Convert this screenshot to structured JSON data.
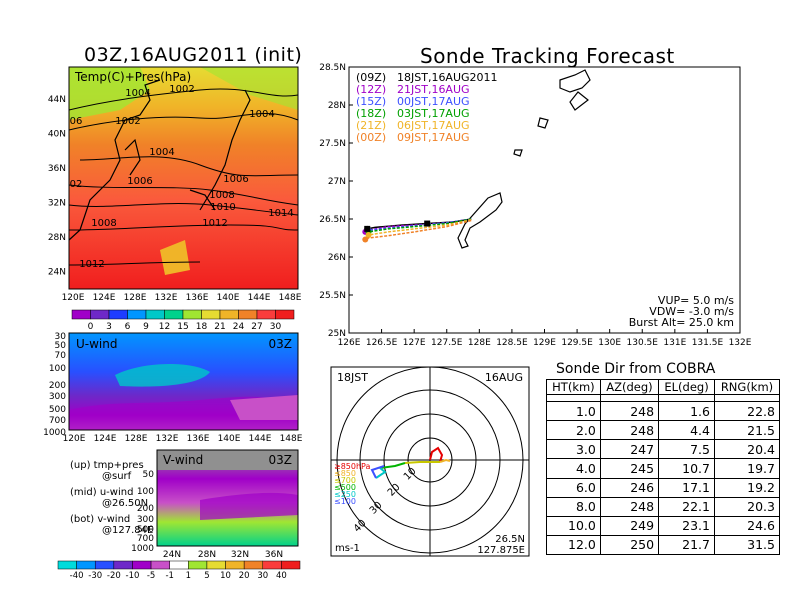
{
  "left_title": "03Z,16AUG2011 (init)",
  "map_panel": {
    "label": "Temp(C)+Pres(hPa)",
    "x_ticks": [
      "120E",
      "124E",
      "128E",
      "132E",
      "136E",
      "140E",
      "144E",
      "148E"
    ],
    "y_ticks": [
      "44N",
      "40N",
      "36N",
      "32N",
      "28N",
      "24N"
    ],
    "isobar_labels": [
      "1004",
      "1002",
      "1002",
      "1004",
      "1004",
      "1006",
      "1006",
      "1008",
      "1010",
      "1008",
      "1012",
      "1014",
      "1012",
      "06",
      "02"
    ],
    "colorbar_labels": [
      "0",
      "3",
      "6",
      "9",
      "12",
      "15",
      "18",
      "21",
      "24",
      "27",
      "30"
    ],
    "colorbar_colors": [
      "#a000c8",
      "#6e28c8",
      "#1e3cff",
      "#0096ff",
      "#00c8c8",
      "#00d28c",
      "#a0e632",
      "#e6dc32",
      "#f0b428",
      "#f08228",
      "#fa3c3c",
      "#f01e1e"
    ]
  },
  "u_panel": {
    "label": "U-wind",
    "time": "03Z",
    "y_ticks": [
      "30",
      "50",
      "70",
      "100",
      "200",
      "300",
      "500",
      "700",
      "1000"
    ],
    "x_ticks": [
      "120E",
      "124E",
      "128E",
      "132E",
      "136E",
      "140E",
      "144E",
      "148E"
    ]
  },
  "v_panel": {
    "label": "V-wind",
    "time": "03Z",
    "y_ticks": [
      "50",
      "100",
      "200",
      "300",
      "500",
      "700",
      "1000"
    ],
    "x_ticks": [
      "24N",
      "28N",
      "32N",
      "36N"
    ]
  },
  "notes": [
    {
      "a": "(up) tmp+pres",
      "b": "@surf"
    },
    {
      "a": "(mid) u-wind",
      "b": "@26.50N"
    },
    {
      "a": "(bot) v-wind",
      "b": "@127.84E"
    }
  ],
  "wind_colorbar": {
    "labels": [
      "-40",
      "-30",
      "-20",
      "-10",
      "-5",
      "-1",
      "1",
      "5",
      "10",
      "20",
      "30",
      "40"
    ],
    "colors": [
      "#00dcdc",
      "#0096ff",
      "#2850ff",
      "#6e28c8",
      "#a000c8",
      "#c850c8",
      "#ffffff",
      "#a0e632",
      "#e6dc32",
      "#f0b428",
      "#f08228",
      "#fa3c3c",
      "#f01e1e"
    ]
  },
  "track_title": "Sonde Tracking Forecast",
  "track_legend": [
    {
      "code": "(09Z)",
      "time": "18JST,16AUG2011",
      "color": "#000000"
    },
    {
      "code": "(12Z)",
      "time": "21JST,16AUG",
      "color": "#a000c8"
    },
    {
      "code": "(15Z)",
      "time": "00JST,17AUG",
      "color": "#3c50ff"
    },
    {
      "code": "(18Z)",
      "time": "03JST,17AUG",
      "color": "#00a000"
    },
    {
      "code": "(21Z)",
      "time": "06JST,17AUG",
      "color": "#f0b428"
    },
    {
      "code": "(00Z)",
      "time": "09JST,17AUG",
      "color": "#f08228"
    }
  ],
  "track_params": [
    "VUP= 5.0 m/s",
    "VDW= -3.0 m/s",
    "Burst Alt= 25.0 km"
  ],
  "chart_data": {
    "type": "line",
    "title": "Sonde Tracking Forecast",
    "xlim": [
      126,
      132
    ],
    "ylim": [
      25,
      28.5
    ],
    "x_ticks": [
      "126E",
      "126.5E",
      "127E",
      "127.5E",
      "128E",
      "128.5E",
      "129E",
      "129.5E",
      "130E",
      "130.5E",
      "131E",
      "131.5E",
      "132E"
    ],
    "y_ticks": [
      "28.5N",
      "28N",
      "27.5N",
      "27N",
      "26.5N",
      "26N",
      "25.5N",
      "25N"
    ],
    "release": {
      "lon": 127.875,
      "lat": 26.5
    },
    "series": [
      {
        "name": "(09Z) 18JST,16AUG2011",
        "color": "#000000",
        "lon": [
          127.875,
          127.6,
          127.2,
          126.8,
          126.4,
          126.28
        ],
        "lat": [
          26.5,
          26.46,
          26.44,
          26.42,
          26.39,
          26.37
        ]
      },
      {
        "name": "(12Z) 21JST,16AUG",
        "color": "#a000c8",
        "lon": [
          127.875,
          127.5,
          127.0,
          126.6,
          126.35,
          126.25
        ],
        "lat": [
          26.5,
          26.45,
          26.42,
          26.4,
          26.36,
          26.33
        ]
      },
      {
        "name": "(15Z) 00JST,17AUG",
        "color": "#3c50ff",
        "lon": [
          127.875,
          127.5,
          127.0,
          126.6,
          126.3
        ],
        "lat": [
          26.5,
          26.45,
          26.41,
          26.38,
          26.35
        ]
      },
      {
        "name": "(18Z) 03JST,17AUG",
        "color": "#00a000",
        "lon": [
          127.875,
          127.5,
          127.0,
          126.6,
          126.3
        ],
        "lat": [
          26.5,
          26.44,
          26.4,
          26.37,
          26.33
        ]
      },
      {
        "name": "(21Z) 06JST,17AUG",
        "color": "#f0b428",
        "lon": [
          127.875,
          127.5,
          127.0,
          126.6,
          126.3
        ],
        "lat": [
          26.49,
          26.42,
          26.37,
          26.33,
          26.29
        ]
      },
      {
        "name": "(00Z) 09JST,17AUG",
        "color": "#f08228",
        "lon": [
          127.875,
          127.5,
          127.0,
          126.6,
          126.3,
          126.25
        ],
        "lat": [
          26.48,
          26.4,
          26.33,
          26.28,
          26.25,
          26.23
        ]
      }
    ]
  },
  "polar": {
    "time": "18JST",
    "date": "16AUG",
    "units": "ms-1",
    "lat": "26.5N",
    "lon": "127.875E",
    "ring_labels": [
      "10",
      "20",
      "30",
      "40"
    ],
    "levels": [
      {
        "label": "≥850hPa",
        "color": "#e60000"
      },
      {
        "label": "≤850",
        "color": "#f0b428"
      },
      {
        "label": "≤700",
        "color": "#c8c800"
      },
      {
        "label": "≤500",
        "color": "#00b400"
      },
      {
        "label": "≤250",
        "color": "#00c8c8"
      },
      {
        "label": "≤100",
        "color": "#3c50ff"
      }
    ]
  },
  "dir_table": {
    "title": "Sonde Dir from COBRA",
    "headers": [
      "HT(km)",
      "AZ(deg)",
      "EL(deg)",
      "RNG(km)"
    ],
    "rows": [
      [
        "1.0",
        "248",
        "1.6",
        "22.8"
      ],
      [
        "2.0",
        "248",
        "4.4",
        "21.5"
      ],
      [
        "3.0",
        "247",
        "7.5",
        "20.4"
      ],
      [
        "4.0",
        "245",
        "10.7",
        "19.7"
      ],
      [
        "6.0",
        "246",
        "17.1",
        "19.2"
      ],
      [
        "8.0",
        "248",
        "22.1",
        "20.3"
      ],
      [
        "10.0",
        "249",
        "23.1",
        "24.6"
      ],
      [
        "12.0",
        "250",
        "21.7",
        "31.5"
      ]
    ]
  }
}
